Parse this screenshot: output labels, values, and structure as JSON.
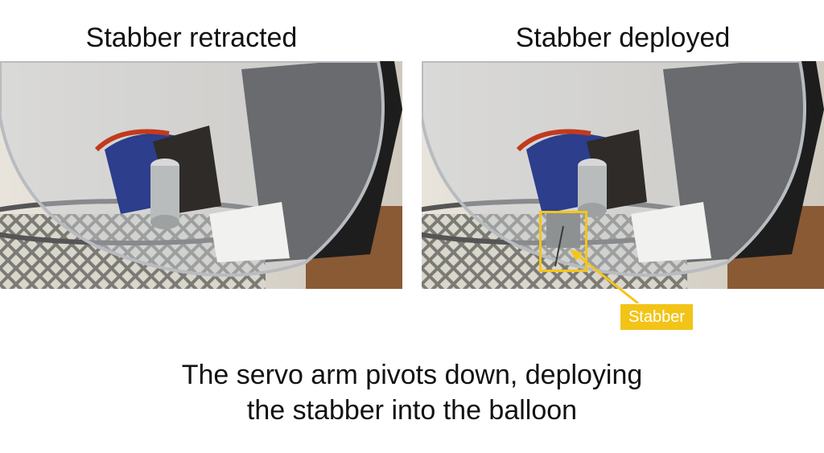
{
  "left_panel": {
    "heading": "Stabber retracted"
  },
  "right_panel": {
    "heading": "Stabber deployed"
  },
  "callout": {
    "label": "Stabber",
    "color": "#f2c418"
  },
  "caption": {
    "line1": "The servo arm pivots down, deploying",
    "line2": "the stabber into the balloon"
  }
}
